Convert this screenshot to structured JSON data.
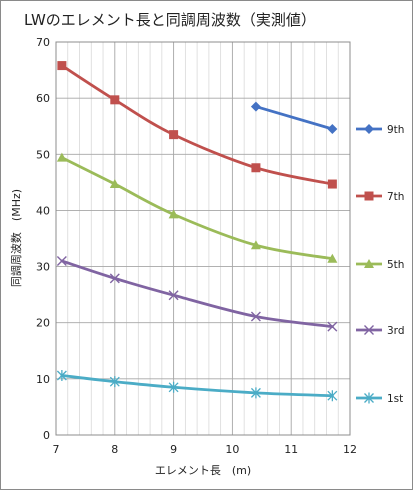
{
  "chart_data": {
    "type": "line",
    "title": "LWのエレメント長と同調周波数（実測値）",
    "xlabel": "エレメント長　(m)",
    "ylabel": "同調周波数　(MHz)",
    "xlim": [
      7,
      12
    ],
    "ylim": [
      0,
      70
    ],
    "xticks": [
      7,
      8,
      9,
      10,
      11,
      12
    ],
    "yticks": [
      0,
      10,
      20,
      30,
      40,
      50,
      60,
      70
    ],
    "xticks_labels": [
      "7",
      "8",
      "9",
      "10",
      "11",
      "12"
    ],
    "yticks_labels": [
      "0",
      "10",
      "20",
      "30",
      "40",
      "50",
      "60",
      "70"
    ],
    "grid": true,
    "minor_grid_x": 0.2,
    "legend_position": "right",
    "series": [
      {
        "name": "9th",
        "color": "#4472C4",
        "marker": "diamond",
        "x": [
          10.4,
          11.7
        ],
        "y": [
          58.5,
          54.5
        ]
      },
      {
        "name": "7th",
        "color": "#C0504D",
        "marker": "square",
        "x": [
          7.1,
          8.0,
          9.0,
          10.4,
          11.7
        ],
        "y": [
          65.8,
          59.7,
          53.5,
          47.6,
          44.7
        ]
      },
      {
        "name": "5th",
        "color": "#9BBB59",
        "marker": "triangle",
        "x": [
          7.1,
          8.0,
          9.0,
          10.4,
          11.7
        ],
        "y": [
          49.4,
          44.7,
          39.3,
          33.8,
          31.4
        ]
      },
      {
        "name": "3rd",
        "color": "#8064A2",
        "marker": "x",
        "x": [
          7.1,
          8.0,
          9.0,
          10.4,
          11.7
        ],
        "y": [
          31.0,
          27.9,
          24.9,
          21.1,
          19.3
        ]
      },
      {
        "name": "1st",
        "color": "#4BACC6",
        "marker": "star",
        "x": [
          7.1,
          8.0,
          9.0,
          10.4,
          11.7
        ],
        "y": [
          10.6,
          9.5,
          8.5,
          7.5,
          7.0
        ]
      }
    ]
  }
}
